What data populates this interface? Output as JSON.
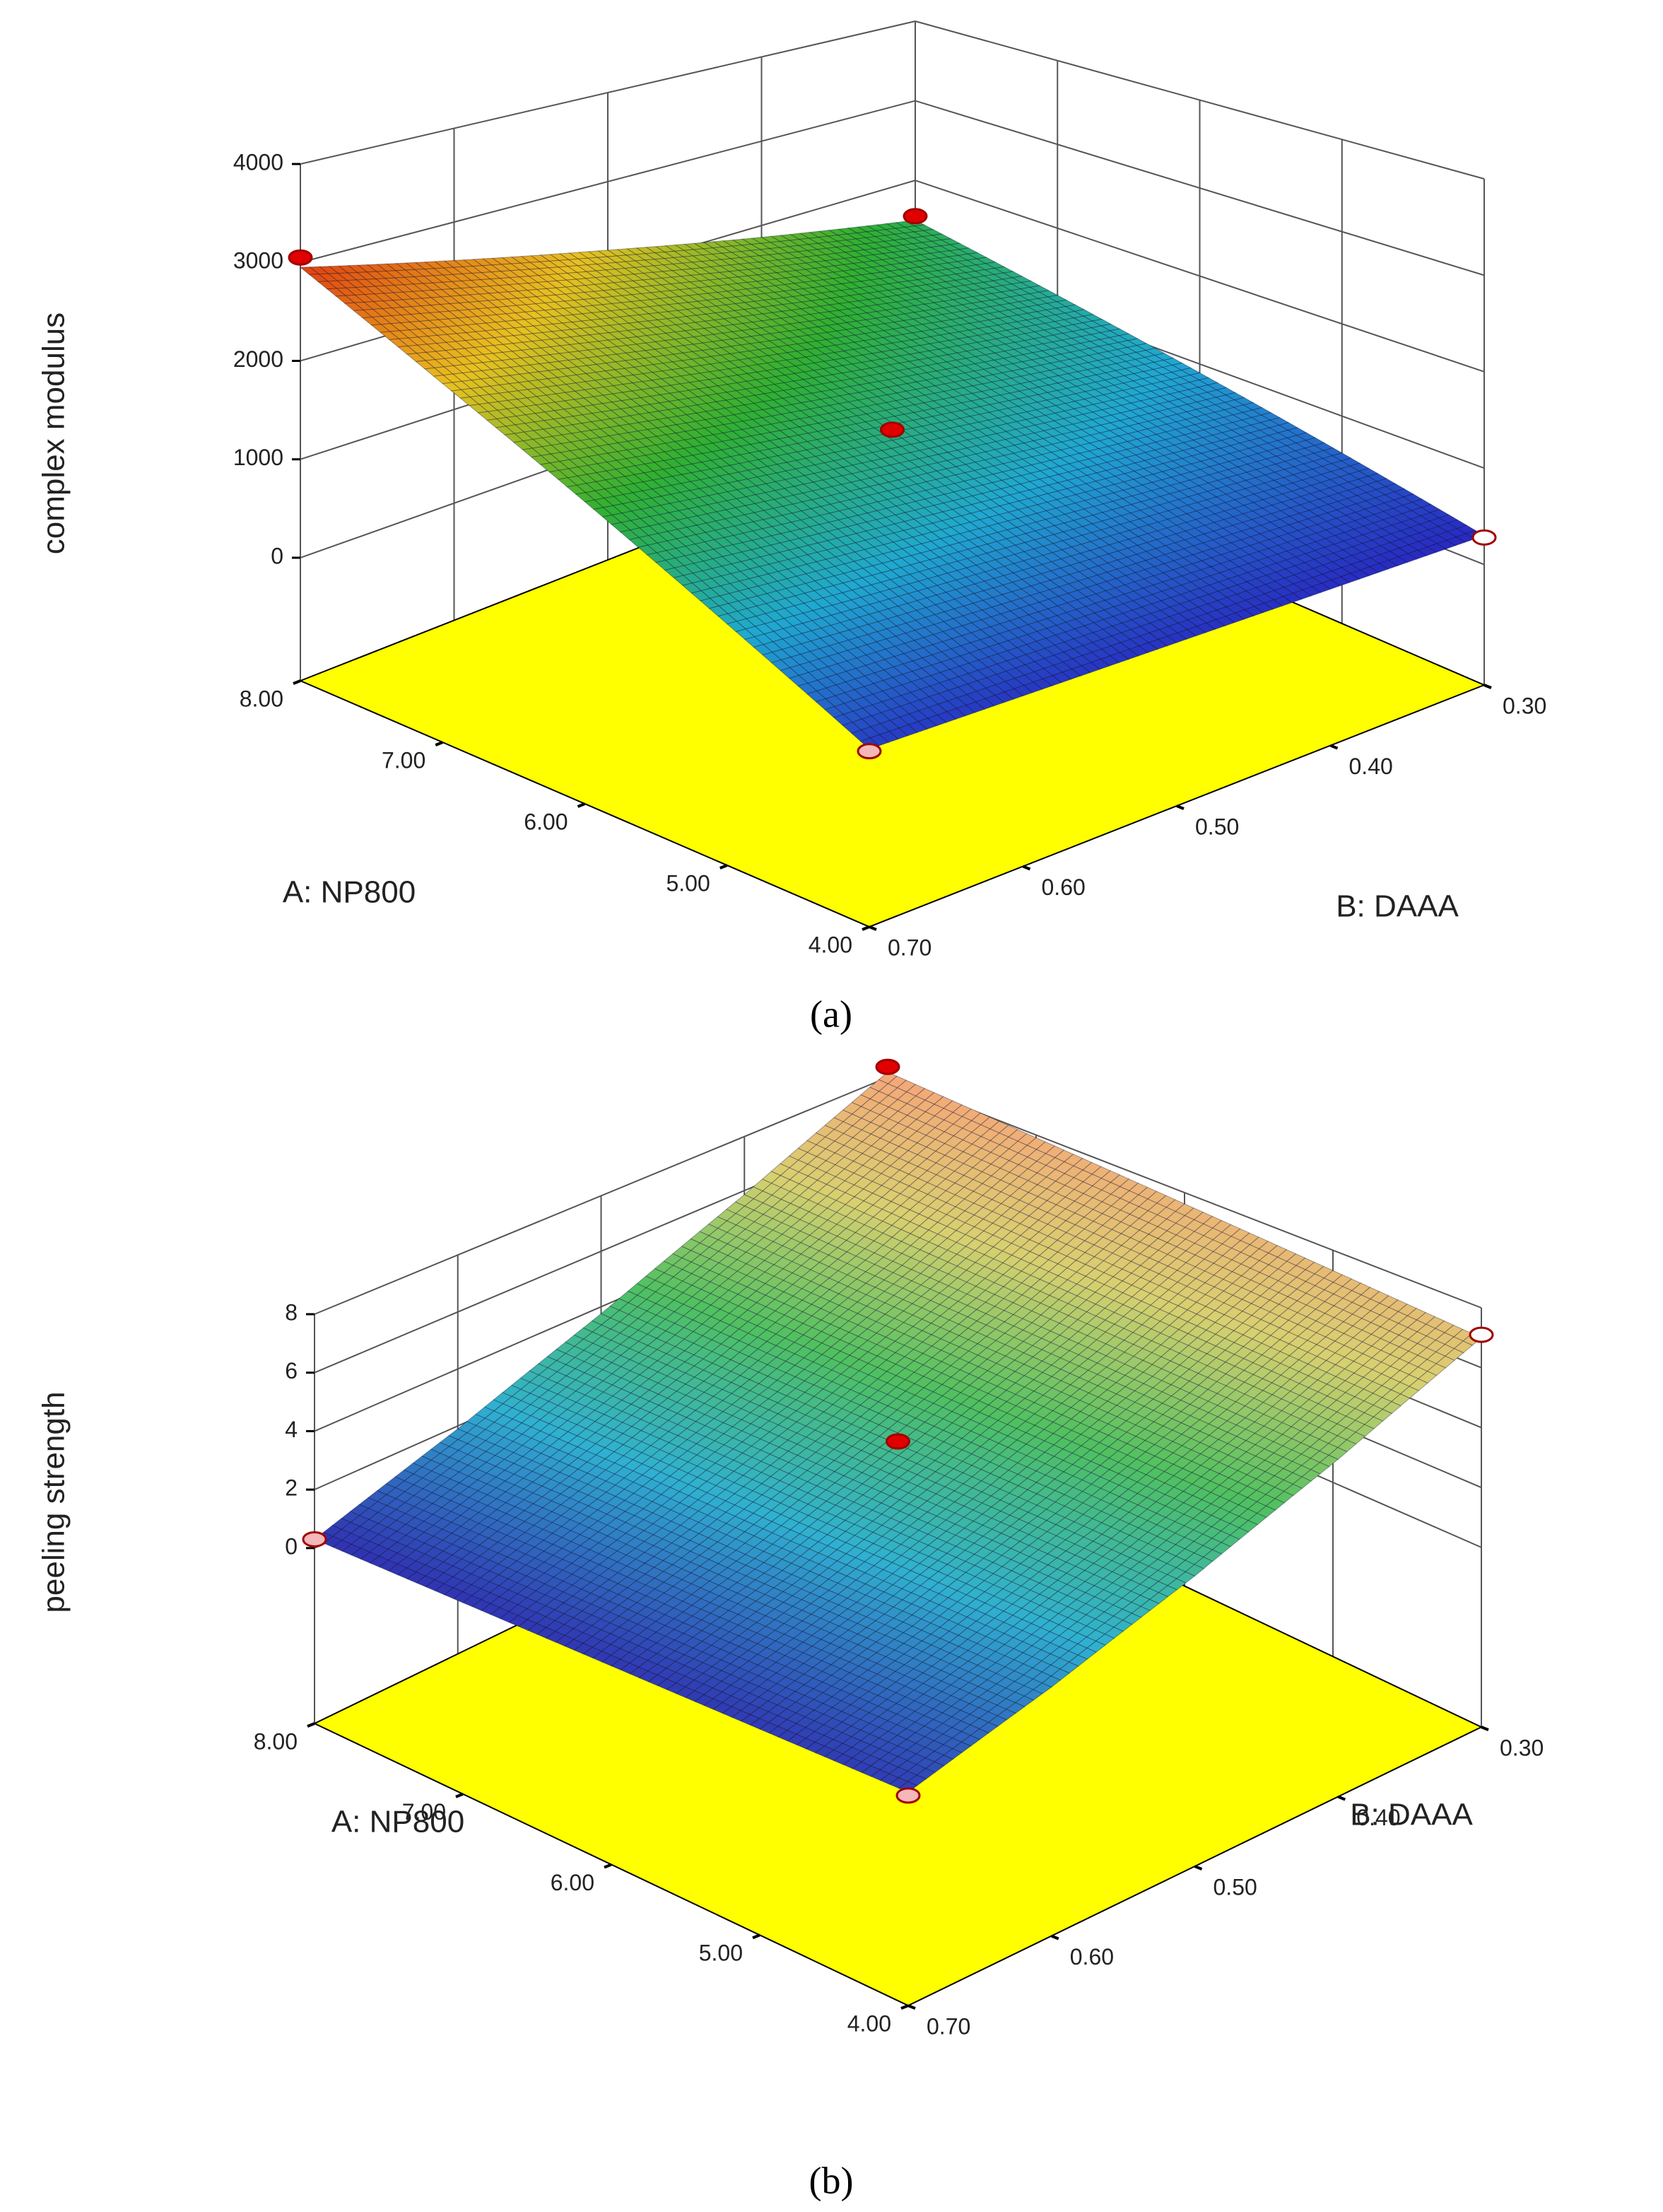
{
  "chart_data": [
    {
      "type": "surface",
      "caption": "(a)",
      "zlabel": "complex modulus",
      "xlabel": "A: NP800",
      "ylabel": "B: DAAA",
      "xlim": [
        4,
        8
      ],
      "xticks": [
        {
          "value": 4,
          "label": "4.00"
        },
        {
          "value": 5,
          "label": "5.00"
        },
        {
          "value": 6,
          "label": "6.00"
        },
        {
          "value": 7,
          "label": "7.00"
        },
        {
          "value": 8,
          "label": "8.00"
        }
      ],
      "ylim": [
        0.3,
        0.7
      ],
      "yticks": [
        {
          "value": 0.3,
          "label": "0.30"
        },
        {
          "value": 0.4,
          "label": "0.40"
        },
        {
          "value": 0.5,
          "label": "0.50"
        },
        {
          "value": 0.6,
          "label": "0.60"
        },
        {
          "value": 0.7,
          "label": "0.70"
        }
      ],
      "zlim": [
        -1250,
        4000
      ],
      "zticks": [
        0,
        1000,
        2000,
        3000,
        4000
      ],
      "surface": {
        "x": [
          4,
          5,
          6,
          7,
          8
        ],
        "y": [
          0.3,
          0.4,
          0.5,
          0.6,
          0.7
        ],
        "z": [
          [
            300,
            325,
            350,
            375,
            400
          ],
          [
            600,
            710,
            820,
            930,
            1040
          ],
          [
            900,
            1090,
            1290,
            1480,
            1680
          ],
          [
            1200,
            1480,
            1760,
            2040,
            2310
          ],
          [
            1500,
            1860,
            2230,
            2590,
            2950
          ]
        ]
      },
      "colormap": [
        "#2828c0",
        "#20a8d0",
        "#30b030",
        "#e8c020",
        "#e04010"
      ],
      "floor_color": "#ffff00",
      "points": [
        {
          "x": 8,
          "y": 0.7,
          "z": 3050,
          "color": "#e00000"
        },
        {
          "x": 8,
          "y": 0.3,
          "z": 1550,
          "color": "#e00000"
        },
        {
          "x": 6,
          "y": 0.5,
          "z": 1400,
          "color": "#e00000"
        },
        {
          "x": 4,
          "y": 0.3,
          "z": 280,
          "color": "#ffffff"
        },
        {
          "x": 4,
          "y": 0.7,
          "z": 380,
          "color": "#f4b8b8"
        }
      ]
    },
    {
      "type": "surface",
      "caption": "(b)",
      "zlabel": "peeling strength",
      "xlabel": "A: NP800",
      "ylabel": "B: DAAA",
      "xlim": [
        4,
        8
      ],
      "xticks": [
        {
          "value": 4,
          "label": "4.00"
        },
        {
          "value": 5,
          "label": "5.00"
        },
        {
          "value": 6,
          "label": "6.00"
        },
        {
          "value": 7,
          "label": "7.00"
        },
        {
          "value": 8,
          "label": "8.00"
        }
      ],
      "ylim": [
        0.3,
        0.7
      ],
      "yticks": [
        {
          "value": 0.3,
          "label": "0.30"
        },
        {
          "value": 0.4,
          "label": "0.40"
        },
        {
          "value": 0.5,
          "label": "0.50"
        },
        {
          "value": 0.6,
          "label": "0.60"
        },
        {
          "value": 0.7,
          "label": "0.70"
        }
      ],
      "zlim": [
        -6,
        8
      ],
      "zticks": [
        0,
        2,
        4,
        6,
        8
      ],
      "surface": {
        "x": [
          4,
          5,
          6,
          7,
          8
        ],
        "y": [
          0.3,
          0.4,
          0.5,
          0.6,
          0.7
        ],
        "z": [
          [
            7.0,
            5.0,
            3.25,
            1.75,
            0.5
          ],
          [
            7.3,
            5.2,
            3.4,
            1.8,
            0.45
          ],
          [
            7.6,
            5.4,
            3.5,
            1.8,
            0.4
          ],
          [
            7.9,
            5.6,
            3.6,
            1.9,
            0.35
          ],
          [
            8.2,
            5.85,
            3.75,
            1.9,
            0.3
          ]
        ]
      },
      "colormap": [
        "#3030b0",
        "#30b0d0",
        "#50c060",
        "#d8d070",
        "#f4a878"
      ],
      "floor_color": "#ffff00",
      "points": [
        {
          "x": 8,
          "y": 0.3,
          "z": 8.4,
          "color": "#e00000"
        },
        {
          "x": 4,
          "y": 0.3,
          "z": 7.1,
          "color": "#ffffff"
        },
        {
          "x": 6,
          "y": 0.5,
          "z": 3.6,
          "color": "#e00000"
        },
        {
          "x": 8,
          "y": 0.7,
          "z": 0.3,
          "color": "#f4b8b8"
        },
        {
          "x": 4,
          "y": 0.7,
          "z": 0.4,
          "color": "#f4b8b8"
        }
      ]
    }
  ]
}
